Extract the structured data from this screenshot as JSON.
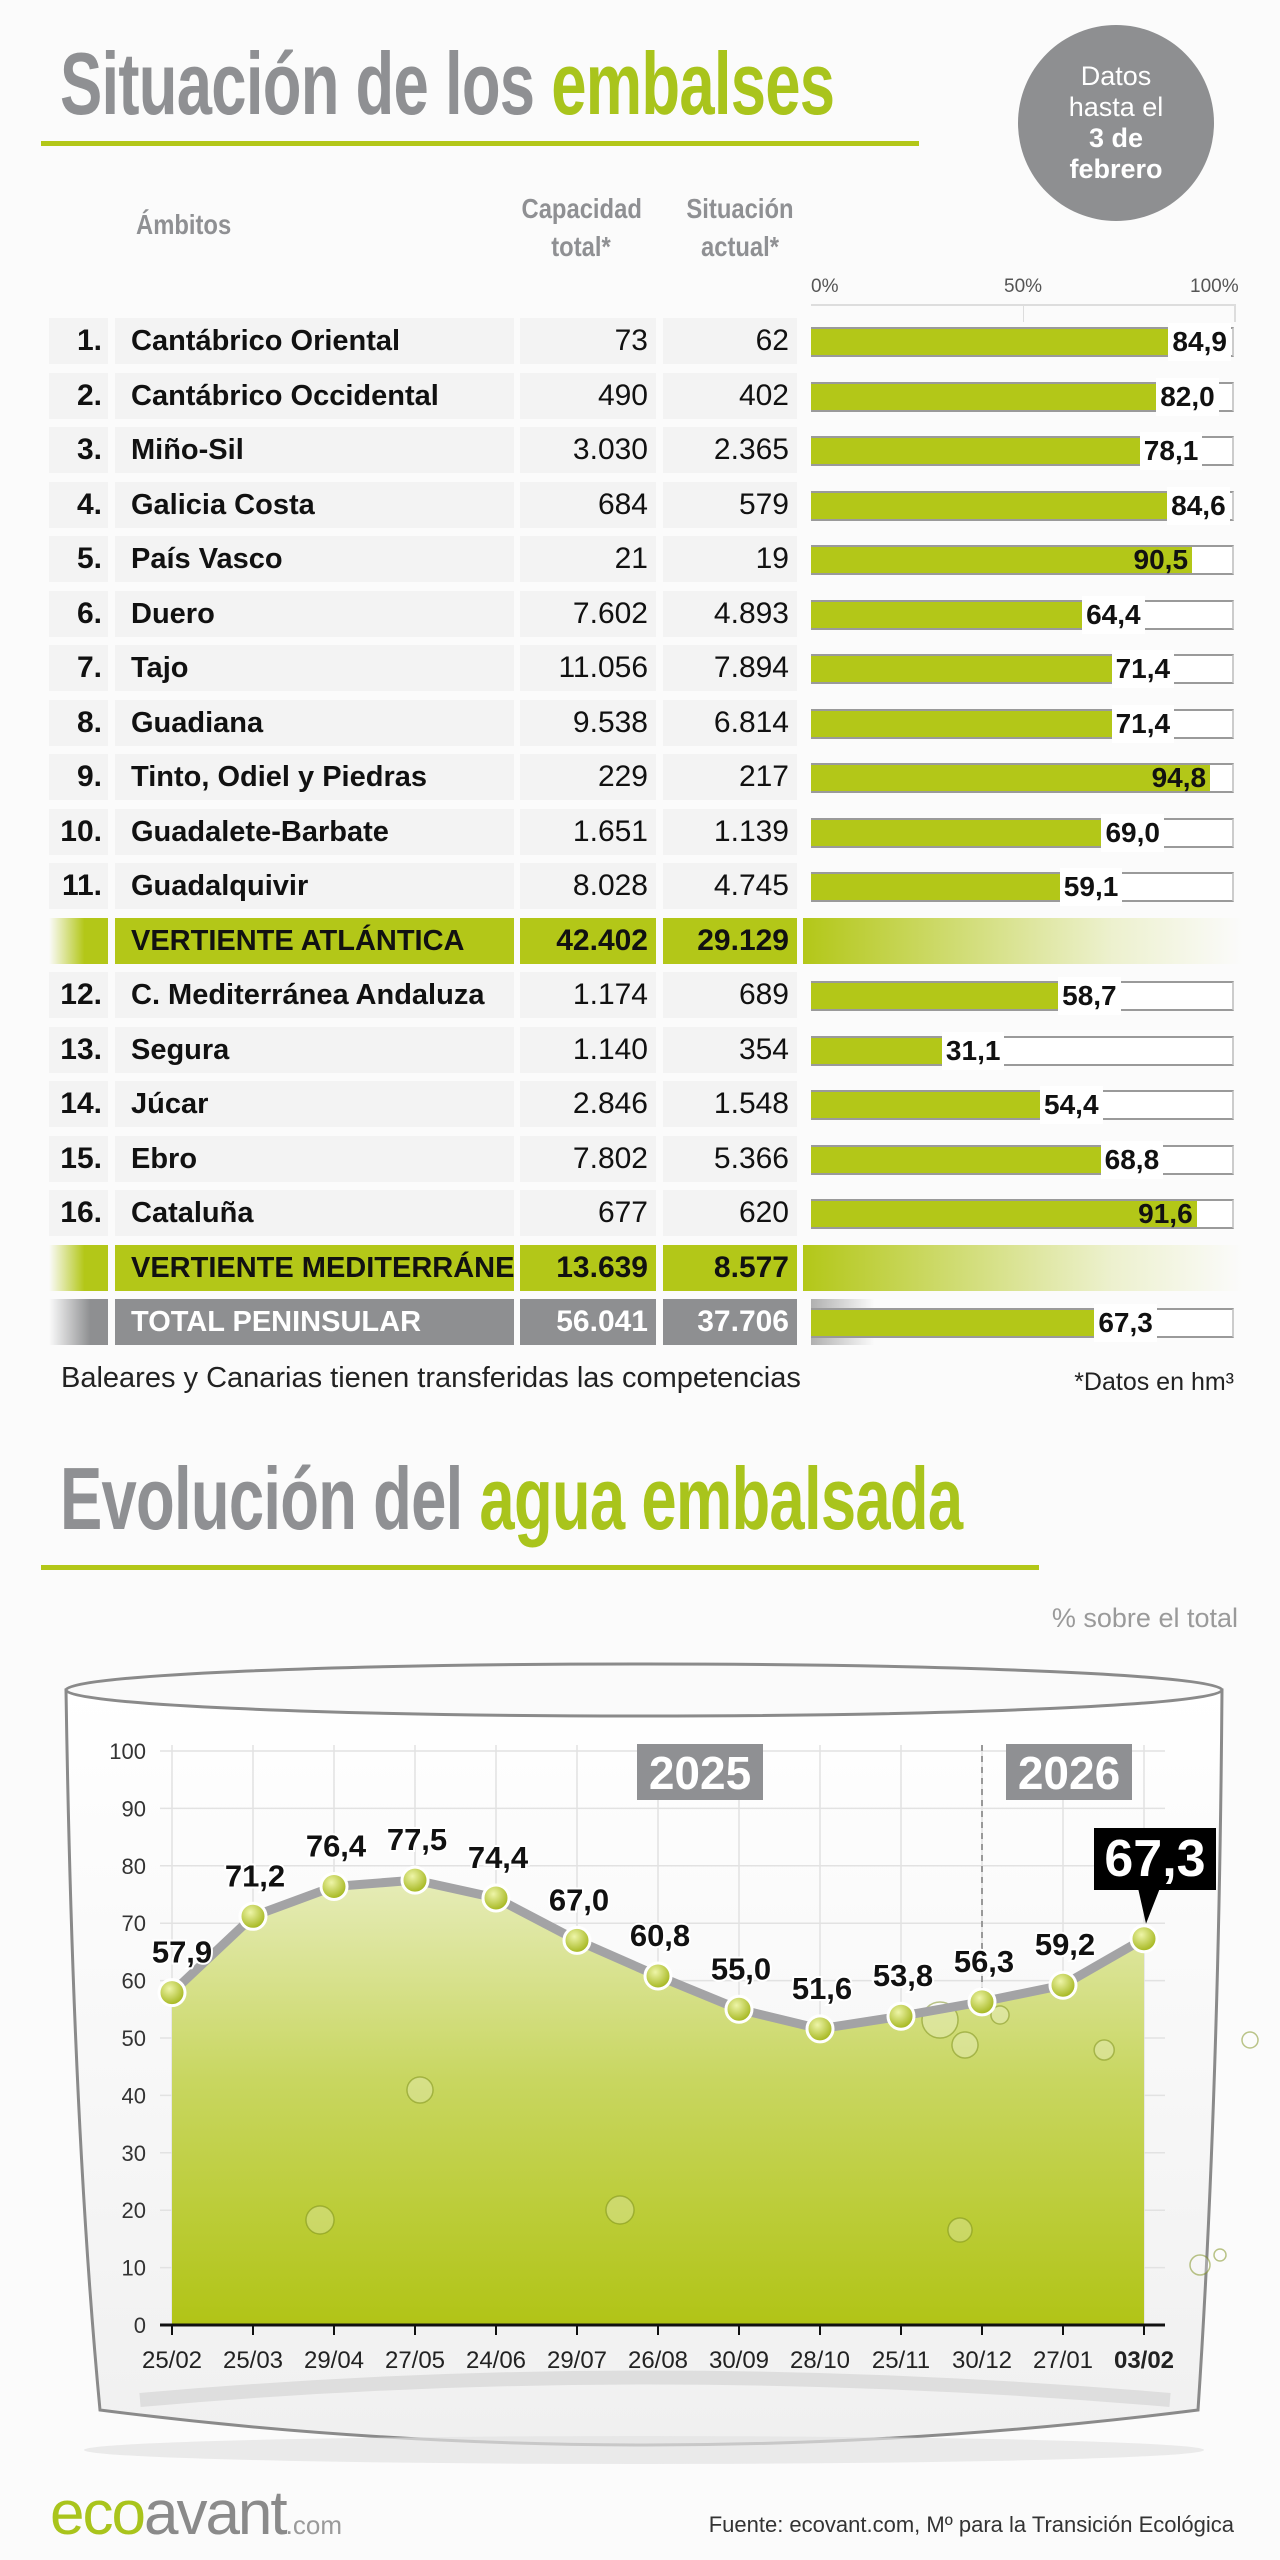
{
  "header": {
    "title_part1": "Situación de los",
    "title_part2": "embalses",
    "badge": [
      "Datos",
      "hasta el",
      "3 de",
      "febrero"
    ]
  },
  "table": {
    "col_ambitos": "Ámbitos",
    "col_capacidad": [
      "Capacidad",
      "total*"
    ],
    "col_situacion": [
      "Situación",
      "actual*"
    ],
    "scale": [
      "0%",
      "50%",
      "100%"
    ],
    "rows": [
      {
        "type": "basin",
        "num": "1.",
        "name": "Cantábrico Oriental",
        "capacity": "73",
        "current": "62",
        "pct": 84.9,
        "pct_label": "84,9"
      },
      {
        "type": "basin",
        "num": "2.",
        "name": "Cantábrico Occidental",
        "capacity": "490",
        "current": "402",
        "pct": 82.0,
        "pct_label": "82,0"
      },
      {
        "type": "basin",
        "num": "3.",
        "name": "Miño-Sil",
        "capacity": "3.030",
        "current": "2.365",
        "pct": 78.1,
        "pct_label": "78,1"
      },
      {
        "type": "basin",
        "num": "4.",
        "name": "Galicia Costa",
        "capacity": "684",
        "current": "579",
        "pct": 84.6,
        "pct_label": "84,6"
      },
      {
        "type": "basin",
        "num": "5.",
        "name": "País Vasco",
        "capacity": "21",
        "current": "19",
        "pct": 90.5,
        "pct_label": "90,5"
      },
      {
        "type": "basin",
        "num": "6.",
        "name": "Duero",
        "capacity": "7.602",
        "current": "4.893",
        "pct": 64.4,
        "pct_label": "64,4"
      },
      {
        "type": "basin",
        "num": "7.",
        "name": "Tajo",
        "capacity": "11.056",
        "current": "7.894",
        "pct": 71.4,
        "pct_label": "71,4"
      },
      {
        "type": "basin",
        "num": "8.",
        "name": "Guadiana",
        "capacity": "9.538",
        "current": "6.814",
        "pct": 71.4,
        "pct_label": "71,4"
      },
      {
        "type": "basin",
        "num": "9.",
        "name": "Tinto, Odiel y Piedras",
        "capacity": "229",
        "current": "217",
        "pct": 94.8,
        "pct_label": "94,8"
      },
      {
        "type": "basin",
        "num": "10.",
        "name": "Guadalete-Barbate",
        "capacity": "1.651",
        "current": "1.139",
        "pct": 69.0,
        "pct_label": "69,0"
      },
      {
        "type": "basin",
        "num": "11.",
        "name": "Guadalquivir",
        "capacity": "8.028",
        "current": "4.745",
        "pct": 59.1,
        "pct_label": "59,1"
      },
      {
        "type": "subtotal",
        "num": "",
        "name": "VERTIENTE ATLÁNTICA",
        "capacity": "42.402",
        "current": "29.129"
      },
      {
        "type": "basin",
        "num": "12.",
        "name": "C. Mediterránea Andaluza",
        "capacity": "1.174",
        "current": "689",
        "pct": 58.7,
        "pct_label": "58,7"
      },
      {
        "type": "basin",
        "num": "13.",
        "name": "Segura",
        "capacity": "1.140",
        "current": "354",
        "pct": 31.1,
        "pct_label": "31,1"
      },
      {
        "type": "basin",
        "num": "14.",
        "name": "Júcar",
        "capacity": "2.846",
        "current": "1.548",
        "pct": 54.4,
        "pct_label": "54,4"
      },
      {
        "type": "basin",
        "num": "15.",
        "name": "Ebro",
        "capacity": "7.802",
        "current": "5.366",
        "pct": 68.8,
        "pct_label": "68,8"
      },
      {
        "type": "basin",
        "num": "16.",
        "name": "Cataluña",
        "capacity": "677",
        "current": "620",
        "pct": 91.6,
        "pct_label": "91,6"
      },
      {
        "type": "subtotal",
        "num": "",
        "name": "VERTIENTE MEDITERRÁNEA",
        "capacity": "13.639",
        "current": "8.577"
      },
      {
        "type": "total",
        "num": "",
        "name": "TOTAL PENINSULAR",
        "capacity": "56.041",
        "current": "37.706",
        "pct": 67.3,
        "pct_label": "67,3"
      }
    ],
    "footnote_left": "Baleares y Canarias tienen transferidas las competencias",
    "footnote_right": "*Datos en hm³"
  },
  "section2": {
    "title_part1": "Evolución del",
    "title_part2": "agua embalsada"
  },
  "chart_data": {
    "type": "area",
    "title": "Evolución del agua embalsada",
    "ylabel": "% sobre el total",
    "xlabel": "",
    "x": [
      "25/02",
      "25/03",
      "29/04",
      "27/05",
      "24/06",
      "29/07",
      "26/08",
      "30/09",
      "28/10",
      "25/11",
      "30/12",
      "27/01",
      "03/02"
    ],
    "values": [
      57.9,
      71.2,
      76.4,
      77.5,
      74.4,
      67.0,
      60.8,
      55.0,
      51.6,
      53.8,
      56.3,
      59.2,
      67.3
    ],
    "value_labels": [
      "57,9",
      "71,2",
      "76,4",
      "77,5",
      "74,4",
      "67,0",
      "60,8",
      "55,0",
      "51,6",
      "53,8",
      "56,3",
      "59,2",
      "67,3"
    ],
    "ylim": [
      0,
      100
    ],
    "yticks": [
      "0",
      "10",
      "20",
      "30",
      "40",
      "50",
      "60",
      "70",
      "80",
      "90",
      "100"
    ],
    "year_labels": [
      "2025",
      "2026"
    ],
    "grid": true,
    "colors": {
      "fill_top": "#e3eab0",
      "fill_bottom": "#b1c416",
      "line": "#a3a3a5",
      "point": "#b3c718",
      "highlight": "#000000"
    }
  },
  "footer": {
    "logo": [
      "eco",
      "avant",
      ".com"
    ],
    "source": "Fuente: ecovant.com, Mº para la Transición Ecológica"
  },
  "colors": {
    "accent": "#b3c718",
    "grey": "#8e8f91"
  }
}
